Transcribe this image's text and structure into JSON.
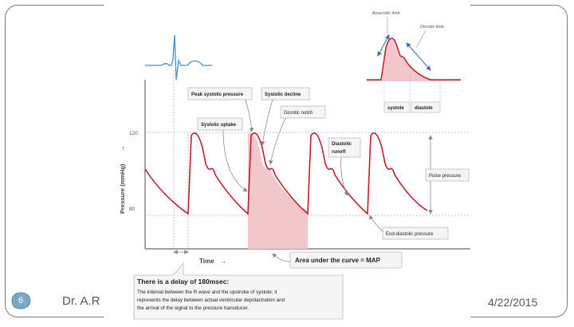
{
  "footer": {
    "author": "Dr. A.R",
    "date": "4/22/2015",
    "slide_number": "6"
  },
  "colors": {
    "waveform": "#c21e2b",
    "fill": "#f1c7cb",
    "ecg": "#4a8fc4",
    "frame": "#7a7a7a",
    "slide_badge": "#7aa8c2"
  },
  "diagram": {
    "y_axis_label": "Pressure (mmHg)",
    "x_axis_label": "Time",
    "y_tick_120": "120",
    "y_tick_80": "80",
    "callouts": {
      "peak_systolic": "Peak systolic pressure",
      "systolic_decline": "Systolic decline",
      "dicrotic_notch": "Dicrotic notch",
      "systolic_uptake": "Systolic uptake",
      "diastolic_runoff_1": "Diastolic",
      "diastolic_runoff_2": "runoff",
      "pulse_pressure": "Pulse pressure",
      "end_diastolic": "End-diastolic pressure",
      "map": "Area under the curve = MAP"
    },
    "inset": {
      "anacrotic_limb": "Anacrotic limb",
      "dicrotic_limb": "Dicrotic limb",
      "systole": "systole",
      "diastole": "diastole"
    },
    "delay_note": {
      "title": "There is a delay of 180msec:",
      "line1": "The interval between the R wave and the upstroke of systole; it",
      "line2": "represents the delay between actual ventricular depolarization and",
      "line3": "the arrival of the signal to the pressure transducer."
    }
  }
}
